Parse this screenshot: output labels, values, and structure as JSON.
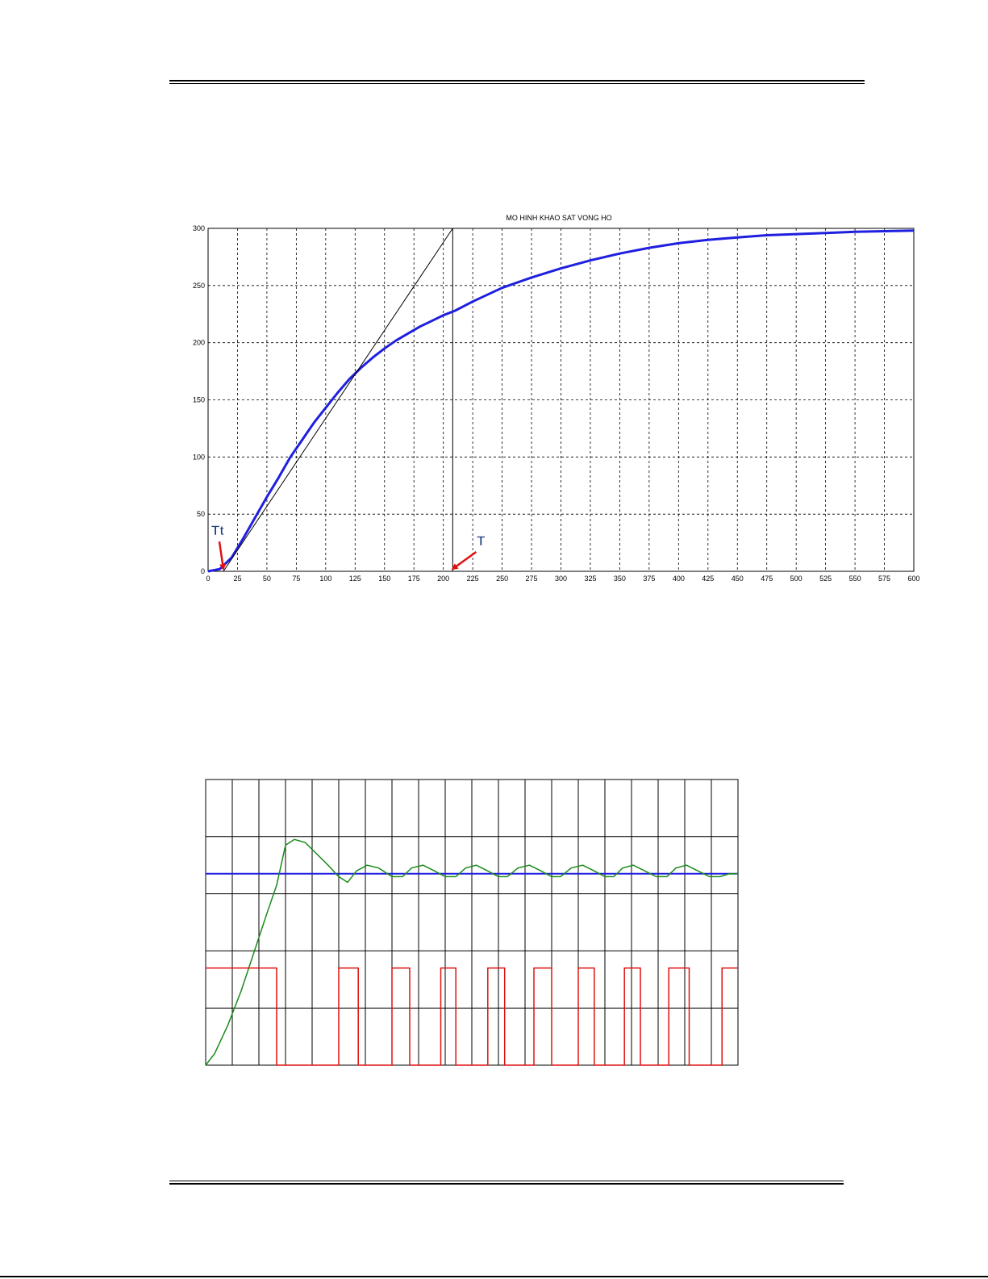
{
  "chart_data": [
    {
      "type": "line",
      "title": "MO HINH KHAO SAT VONG HO",
      "xlim": [
        0,
        600
      ],
      "ylim": [
        0,
        300
      ],
      "grid": true,
      "x_ticks": [
        0,
        25,
        50,
        75,
        100,
        125,
        150,
        175,
        200,
        225,
        250,
        275,
        300,
        325,
        350,
        375,
        400,
        425,
        450,
        475,
        500,
        525,
        550,
        575,
        600
      ],
      "y_ticks": [
        0,
        50,
        100,
        150,
        200,
        250,
        300
      ],
      "series": [
        {
          "color": "#1f1fe0",
          "x": [
            0,
            10,
            20,
            30,
            40,
            50,
            60,
            70,
            80,
            90,
            100,
            110,
            120,
            130,
            140,
            150,
            160,
            170,
            180,
            190,
            200,
            210,
            225,
            250,
            275,
            300,
            325,
            350,
            375,
            400,
            425,
            450,
            475,
            500,
            525,
            550,
            575,
            600
          ],
          "y": [
            0,
            2,
            12,
            29,
            47,
            65,
            82,
            100,
            115,
            130,
            143,
            156,
            168,
            178,
            187,
            195,
            202,
            208,
            214,
            219,
            224,
            228,
            236,
            248,
            257,
            265,
            272,
            278,
            283,
            287,
            290,
            292,
            294,
            295,
            296,
            297,
            297.5,
            298
          ]
        },
        {
          "color": "#000000",
          "x": [
            13,
            208
          ],
          "y": [
            0,
            300
          ]
        }
      ],
      "vertical_line_x": 208,
      "annotations": [
        {
          "text": "Tt",
          "x": 13,
          "y": 0
        },
        {
          "text": "T",
          "x": 208,
          "y": 0
        }
      ]
    },
    {
      "type": "line",
      "grid": true,
      "xlim": [
        0,
        600
      ],
      "ylim": [
        0,
        5
      ],
      "series": [
        {
          "color": "#1f1fe0",
          "x": [
            0,
            600
          ],
          "y": [
            3.35,
            3.35
          ]
        },
        {
          "color": "#1a8a1a",
          "x": [
            0,
            10,
            25,
            40,
            55,
            70,
            80,
            90,
            100,
            112,
            125,
            138,
            150,
            160,
            170,
            182,
            195,
            210,
            222,
            232,
            245,
            258,
            270,
            282,
            293,
            305,
            318,
            330,
            340,
            352,
            365,
            378,
            390,
            400,
            412,
            425,
            438,
            450,
            460,
            470,
            482,
            495,
            508,
            520,
            530,
            542,
            555,
            568,
            580,
            590,
            600
          ],
          "y": [
            0,
            0.2,
            0.7,
            1.3,
            2.0,
            2.7,
            3.15,
            3.85,
            3.95,
            3.9,
            3.7,
            3.5,
            3.3,
            3.2,
            3.4,
            3.5,
            3.45,
            3.3,
            3.3,
            3.45,
            3.5,
            3.4,
            3.3,
            3.3,
            3.45,
            3.5,
            3.4,
            3.3,
            3.3,
            3.45,
            3.5,
            3.4,
            3.3,
            3.3,
            3.45,
            3.5,
            3.4,
            3.3,
            3.3,
            3.45,
            3.5,
            3.4,
            3.3,
            3.3,
            3.45,
            3.5,
            3.4,
            3.3,
            3.3,
            3.35,
            3.35
          ]
        },
        {
          "color": "#e01010",
          "x": [
            0,
            80,
            80,
            150,
            150,
            172,
            172,
            210,
            210,
            230,
            230,
            265,
            265,
            282,
            282,
            318,
            318,
            337,
            337,
            370,
            370,
            390,
            390,
            420,
            420,
            438,
            438,
            472,
            472,
            490,
            490,
            522,
            522,
            545,
            545,
            582,
            582,
            600
          ],
          "y": [
            1.7,
            1.7,
            0,
            0,
            1.7,
            1.7,
            0,
            0,
            1.7,
            1.7,
            0,
            0,
            1.7,
            1.7,
            0,
            0,
            1.7,
            1.7,
            0,
            0,
            1.7,
            1.7,
            0,
            0,
            1.7,
            1.7,
            0,
            0,
            1.7,
            1.7,
            0,
            0,
            1.7,
            1.7,
            0,
            0,
            1.7,
            1.7
          ]
        }
      ]
    }
  ]
}
